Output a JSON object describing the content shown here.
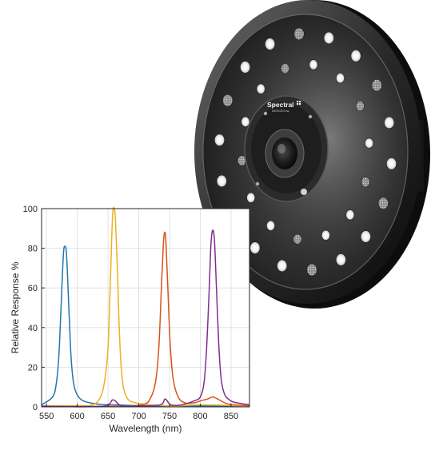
{
  "product": {
    "logo_text": "Spectral",
    "logo_subtext": "DEVICES inc."
  },
  "chart_data": {
    "type": "line",
    "title": "",
    "xlabel": "Wavelength (nm)",
    "ylabel": "Relative Response %",
    "xlim": [
      542,
      880
    ],
    "ylim": [
      0,
      100
    ],
    "xticks": [
      550,
      600,
      650,
      700,
      750,
      800,
      850
    ],
    "yticks": [
      0,
      20,
      40,
      60,
      80,
      100
    ],
    "grid": true,
    "legend": "none",
    "series": [
      {
        "color": "#1f77b4",
        "x": [
          542,
          560,
          566,
          570,
          573,
          576,
          578,
          580,
          582,
          584,
          587,
          590,
          594,
          600,
          610,
          630,
          650,
          660,
          680,
          720,
          800,
          880
        ],
        "y": [
          1,
          5,
          12,
          25,
          45,
          68,
          79,
          81,
          79,
          68,
          45,
          25,
          12,
          6,
          3,
          1.5,
          1,
          1,
          0.8,
          0.5,
          0.5,
          0.5
        ]
      },
      {
        "color": "#edb120",
        "x": [
          542,
          600,
          625,
          638,
          645,
          650,
          653,
          656,
          658,
          660,
          662,
          665,
          668,
          671,
          675,
          682,
          695,
          720,
          760,
          800,
          880
        ],
        "y": [
          0.5,
          0.5,
          1,
          5,
          14,
          30,
          55,
          85,
          99,
          100,
          95,
          72,
          42,
          22,
          10,
          4,
          2,
          1,
          0.5,
          1,
          0.5
        ]
      },
      {
        "color": "#d95319",
        "x": [
          542,
          650,
          705,
          720,
          728,
          733,
          737,
          740,
          742,
          744,
          747,
          751,
          756,
          764,
          775,
          790,
          800,
          812,
          820,
          828,
          845,
          880
        ],
        "y": [
          0.3,
          0.3,
          1,
          5,
          14,
          32,
          62,
          82,
          88,
          84,
          62,
          32,
          14,
          5,
          2,
          2,
          3,
          4,
          5,
          4,
          1.5,
          0.5
        ]
      },
      {
        "color": "#7e2f8e",
        "x": [
          542,
          640,
          658,
          672,
          700,
          735,
          743,
          752,
          770,
          790,
          800,
          806,
          810,
          814,
          817,
          820,
          823,
          826,
          830,
          834,
          840,
          850,
          860,
          880
        ],
        "y": [
          0.3,
          0.3,
          3.5,
          0.5,
          0.5,
          1,
          4,
          1,
          1,
          3,
          5,
          12,
          28,
          55,
          80,
          89,
          84,
          62,
          32,
          14,
          6,
          3,
          2,
          1
        ]
      }
    ]
  }
}
